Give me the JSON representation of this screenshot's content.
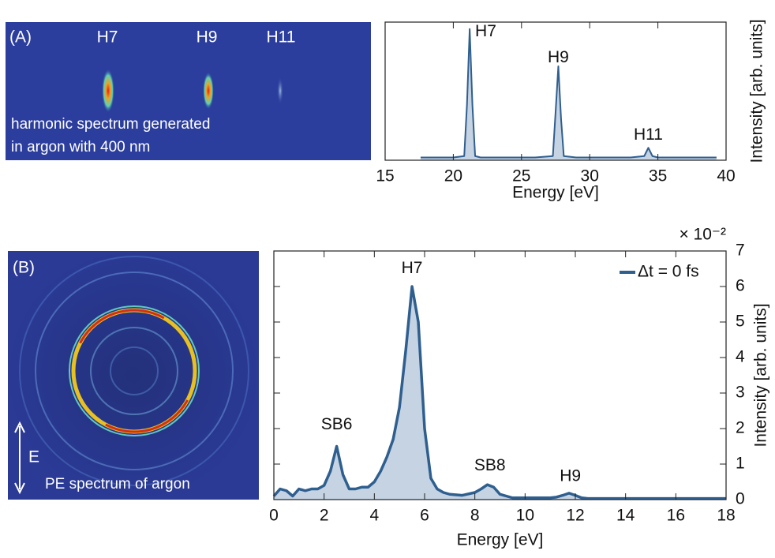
{
  "images": [
    {
      "label": "(A)",
      "peak_labels": [
        "H7",
        "H9",
        "H11"
      ],
      "caption": [
        "harmonic spectrum generated",
        "in argon with 400 nm"
      ]
    },
    {
      "label": "(B)",
      "arrow_label": "E",
      "caption": [
        "PE spectrum of argon"
      ]
    }
  ],
  "chart_data": [
    {
      "type": "line",
      "xlabel": "Energy [eV]",
      "ylabel": "Intensity [arb. units]",
      "xlim": [
        15,
        40
      ],
      "xticks": [
        15,
        20,
        25,
        30,
        35,
        40
      ],
      "ylim": [
        0,
        1
      ],
      "x": [
        17.6,
        18,
        19,
        20,
        20.8,
        21.0,
        21.2,
        21.4,
        21.6,
        22,
        23,
        26,
        27.3,
        27.5,
        27.7,
        27.9,
        28.1,
        29,
        33,
        34.0,
        34.3,
        34.6,
        35,
        39.3
      ],
      "series": [
        {
          "color": "#2f5f8f",
          "fill": "#c5d3e3",
          "values": [
            0.02,
            0.02,
            0.02,
            0.02,
            0.03,
            0.4,
            0.95,
            0.4,
            0.03,
            0.02,
            0.02,
            0.02,
            0.03,
            0.35,
            0.68,
            0.3,
            0.03,
            0.02,
            0.02,
            0.03,
            0.09,
            0.03,
            0.02,
            0.02
          ]
        }
      ],
      "annotations": [
        {
          "text": "H7",
          "x": 21.6,
          "y": 0.93
        },
        {
          "text": "H9",
          "x": 27.7,
          "y": 0.74
        },
        {
          "text": "H11",
          "x": 34.3,
          "y": 0.18
        }
      ]
    },
    {
      "type": "line",
      "xlabel": "Energy [eV]",
      "ylabel": "Intensity [arb. units]",
      "y_multiplier": "× 10⁻²",
      "xlim": [
        0,
        18
      ],
      "xticks": [
        0,
        2,
        4,
        6,
        8,
        10,
        12,
        14,
        16,
        18
      ],
      "ylim": [
        0,
        7
      ],
      "yticks": [
        0,
        1,
        2,
        3,
        4,
        5,
        6,
        7
      ],
      "x": [
        0,
        0.25,
        0.5,
        0.75,
        1.0,
        1.25,
        1.5,
        1.75,
        2.0,
        2.25,
        2.5,
        2.75,
        3.0,
        3.25,
        3.5,
        3.75,
        4.0,
        4.25,
        4.5,
        4.75,
        5.0,
        5.25,
        5.5,
        5.75,
        6.0,
        6.25,
        6.5,
        6.75,
        7.0,
        7.5,
        8.0,
        8.25,
        8.5,
        8.75,
        9.0,
        9.25,
        9.5,
        11.0,
        11.25,
        11.5,
        11.75,
        12.0,
        12.25,
        12.5,
        18
      ],
      "series": [
        {
          "name": "Δt = 0 fs",
          "color": "#2f5f8f",
          "fill": "#c5d3e3",
          "values": [
            0.1,
            0.3,
            0.25,
            0.1,
            0.3,
            0.25,
            0.3,
            0.3,
            0.4,
            0.8,
            1.5,
            0.7,
            0.3,
            0.3,
            0.35,
            0.35,
            0.5,
            0.8,
            1.2,
            1.7,
            2.6,
            4.2,
            6.0,
            5.0,
            2.0,
            0.6,
            0.3,
            0.2,
            0.15,
            0.12,
            0.2,
            0.3,
            0.42,
            0.35,
            0.15,
            0.1,
            0.05,
            0.05,
            0.07,
            0.12,
            0.18,
            0.12,
            0.05,
            0.03,
            0.03
          ]
        }
      ],
      "annotations": [
        {
          "text": "H7",
          "x": 5.5,
          "y": 6.5
        },
        {
          "text": "SB6",
          "x": 2.5,
          "y": 2.1
        },
        {
          "text": "SB8",
          "x": 8.6,
          "y": 0.95
        },
        {
          "text": "H9",
          "x": 11.8,
          "y": 0.65
        }
      ]
    }
  ]
}
